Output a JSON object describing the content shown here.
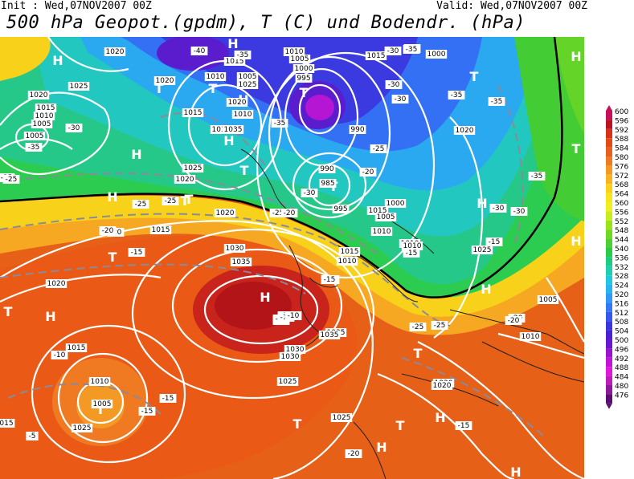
{
  "header": {
    "init": "Init : Wed,07NOV2007 00Z",
    "valid": "Valid: Wed,07NOV2007 00Z",
    "title": "500 hPa Geopot.(gpdm), T (C) und Bodendr. (hPa)"
  },
  "colorbar": {
    "levels": [
      "600",
      "596",
      "592",
      "588",
      "584",
      "580",
      "576",
      "572",
      "568",
      "564",
      "560",
      "556",
      "552",
      "548",
      "544",
      "540",
      "536",
      "532",
      "528",
      "524",
      "520",
      "516",
      "512",
      "508",
      "504",
      "500",
      "496",
      "492",
      "488",
      "484",
      "480",
      "476"
    ],
    "colors": [
      "#c8105a",
      "#b81420",
      "#d8301a",
      "#e24a18",
      "#e86020",
      "#ee7a22",
      "#f49a24",
      "#f8b41e",
      "#fad018",
      "#f8e61c",
      "#f0f020",
      "#c8ec1c",
      "#98e418",
      "#70d820",
      "#4cd034",
      "#28cc4c",
      "#1ccc80",
      "#1cd0b0",
      "#20c8e0",
      "#28b4f0",
      "#3098f8",
      "#3478f8",
      "#3856f0",
      "#3a36e0",
      "#4a22d4",
      "#6a18d0",
      "#9a14d0",
      "#c014d8",
      "#e018d8",
      "#c01cb8",
      "#90189a",
      "#5a1070"
    ]
  },
  "map": {
    "symbols": [
      {
        "t": "H"
      },
      {
        "t": "T"
      },
      {
        "t": "T"
      },
      {
        "t": "H"
      },
      {
        "t": "T"
      },
      {
        "t": "H"
      },
      {
        "t": "T"
      },
      {
        "t": "H"
      },
      {
        "t": "T"
      },
      {
        "t": "H"
      },
      {
        "t": "H"
      },
      {
        "t": "T"
      },
      {
        "t": "T"
      },
      {
        "t": "H"
      },
      {
        "t": "H"
      },
      {
        "t": "T"
      },
      {
        "t": "H"
      },
      {
        "t": "T"
      },
      {
        "t": "H"
      },
      {
        "t": "T"
      },
      {
        "t": "H"
      },
      {
        "t": "T"
      },
      {
        "t": "T"
      },
      {
        "t": "T"
      },
      {
        "t": "H"
      },
      {
        "t": "H"
      },
      {
        "t": "H"
      },
      {
        "t": "T"
      },
      {
        "t": "H"
      },
      {
        "t": "T"
      }
    ],
    "pressure_labels": [
      "1020",
      "1015",
      "1010",
      "1005",
      "1020",
      "1025",
      "1015",
      "1010",
      "1005",
      "1020",
      "1015",
      "1025",
      "1010",
      "1020",
      "1030",
      "1035",
      "1005",
      "1010",
      "1005",
      "1000",
      "995",
      "990",
      "1015",
      "1020",
      "1035",
      "1025",
      "1020",
      "1015",
      "1010",
      "1025",
      "1020",
      "1030",
      "1035",
      "1030",
      "1025",
      "1020",
      "1010",
      "1005",
      "1015",
      "1010",
      "1000",
      "995",
      "990",
      "985",
      "1015",
      "1010",
      "1005",
      "1010",
      "1000",
      "1025",
      "1020",
      "1015",
      "1030",
      "1035",
      "1020",
      "1025",
      "015",
      "1005",
      "1010"
    ],
    "temp_labels": [
      "-35",
      "-35",
      "-30",
      "-25",
      "-25",
      "-25",
      "-20",
      "-20",
      "-15",
      "-10",
      "-30",
      "-35",
      "-40",
      "-35",
      "-35",
      "-30",
      "-30",
      "-25",
      "-20",
      "-15",
      "-10",
      "-15",
      "-15",
      "-5",
      "-35",
      "-30",
      "-35",
      "-30",
      "-25",
      "-20",
      "-15",
      "-10",
      "-15",
      "-35",
      "-30",
      "-25",
      "-20",
      "-15",
      "-15",
      "-10",
      "-35",
      "-25",
      "-20",
      "-10",
      "-15",
      "-20"
    ]
  }
}
